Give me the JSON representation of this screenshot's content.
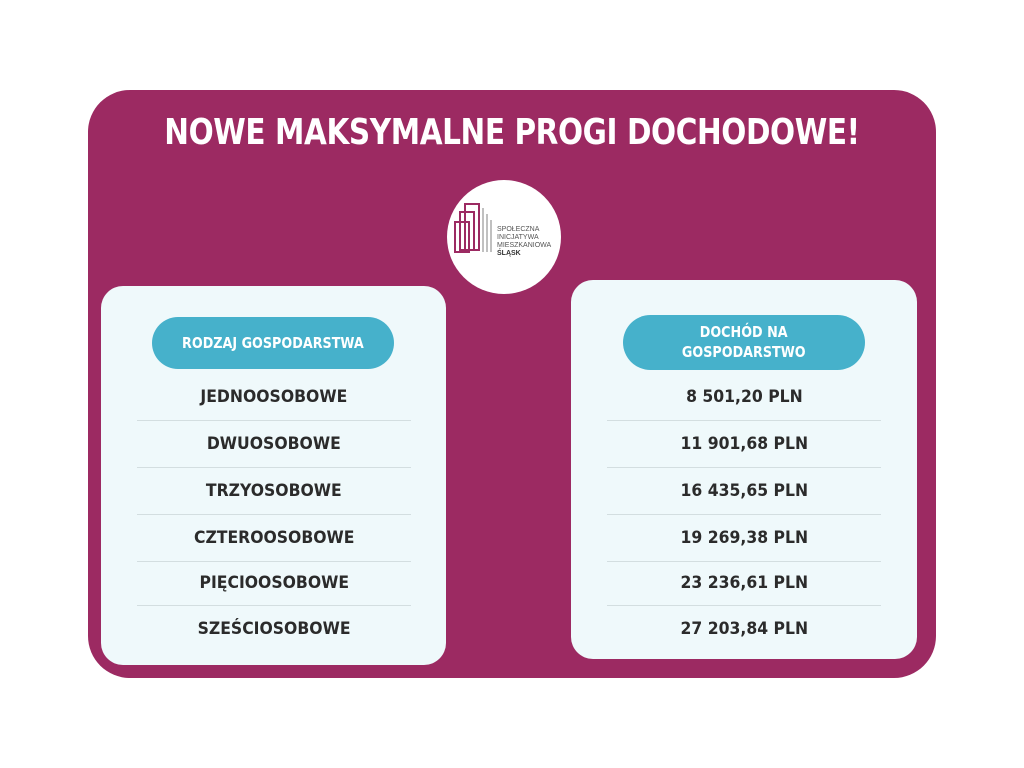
{
  "title": "NOWE MAKSYMALNE PROGI DOCHODOWE!",
  "logo": {
    "lines": [
      "SPOŁECZNA",
      "INICJATYWA",
      "MIESZKANIOWA"
    ],
    "bold": "ŚLĄSK"
  },
  "colors": {
    "background_panel": "#9c2a62",
    "header_pill": "#46b1cb",
    "card": "#eff9fb"
  },
  "left_table": {
    "header": "RODZAJ GOSPODARSTWA",
    "rows": [
      "JEDNOOSOBOWE",
      "DWUOSOBOWE",
      "TRZYOSOBOWE",
      "CZTEROOSOBOWE",
      "PIĘCIOOSOBOWE",
      "SZEŚCIOSOBOWE"
    ]
  },
  "right_table": {
    "header_line1": "DOCHÓD NA",
    "header_line2": "GOSPODARSTWO",
    "rows": [
      "8 501,20 PLN",
      "11 901,68 PLN",
      "16 435,65 PLN",
      "19 269,38 PLN",
      "23 236,61 PLN",
      "27 203,84 PLN"
    ]
  }
}
